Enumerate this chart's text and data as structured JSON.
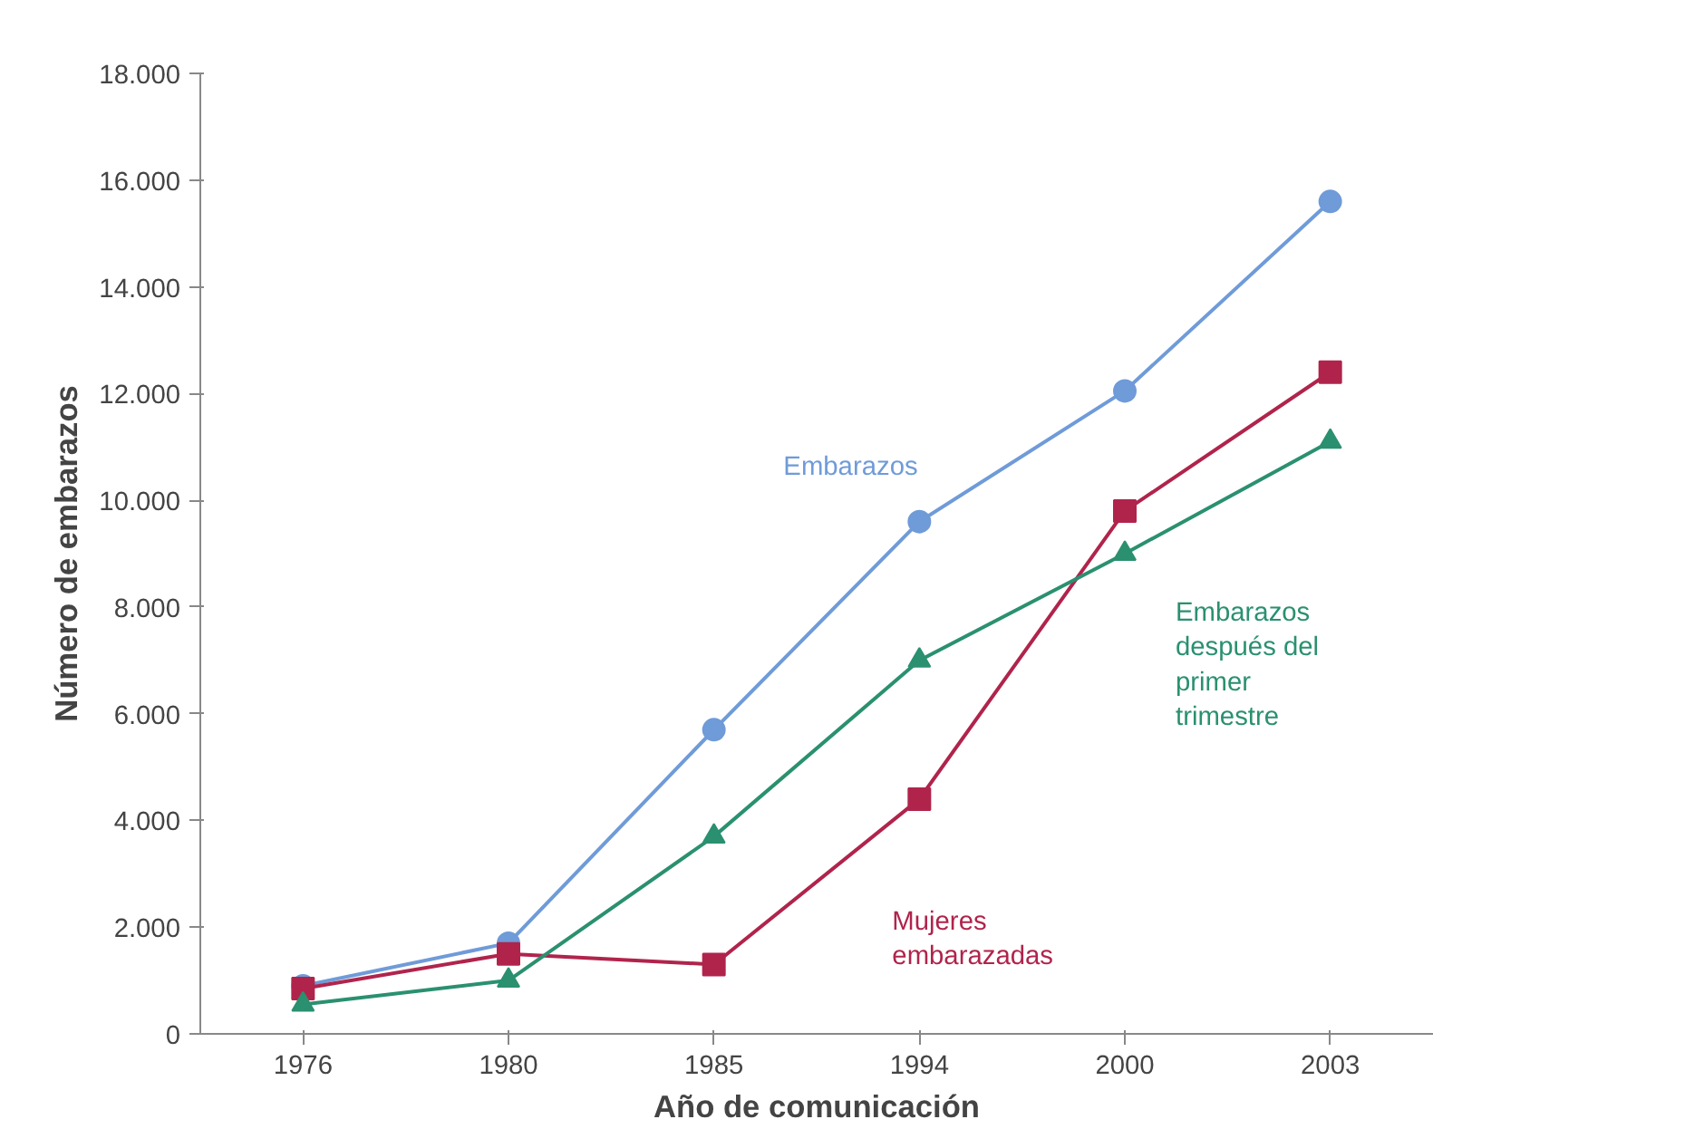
{
  "chart_data": {
    "type": "line",
    "xlabel": "Año de comunicación",
    "ylabel": "Número de embarazos",
    "categories": [
      "1976",
      "1980",
      "1985",
      "1994",
      "2000",
      "2003"
    ],
    "series": [
      {
        "name": "Embarazos",
        "color": "#6f9bd8",
        "marker": "circle",
        "values": [
          900,
          1700,
          5700,
          9600,
          12050,
          15600
        ]
      },
      {
        "name": "Mujeres embarazadas",
        "color": "#b0244c",
        "marker": "square",
        "values": [
          850,
          1500,
          1300,
          4400,
          9800,
          12400
        ]
      },
      {
        "name": "Embarazos después del primer trimestre",
        "color": "#2a9070",
        "marker": "triangle",
        "values": [
          550,
          1000,
          3700,
          7000,
          9000,
          11100
        ]
      }
    ],
    "ylim": [
      0,
      18000
    ],
    "yticks": [
      0,
      {
        "value": 2000,
        "label": "2.000"
      },
      {
        "value": 4000,
        "label": "4.000"
      },
      {
        "value": 6000,
        "label": "6.000"
      },
      {
        "value": 8000,
        "label": "8.000"
      },
      {
        "value": 10000,
        "label": "10.000"
      },
      {
        "value": 12000,
        "label": "12.000"
      },
      {
        "value": 14000,
        "label": "14.000"
      },
      {
        "value": 16000,
        "label": "16.000"
      },
      {
        "value": 18000,
        "label": "18.000"
      }
    ],
    "grid": false
  }
}
